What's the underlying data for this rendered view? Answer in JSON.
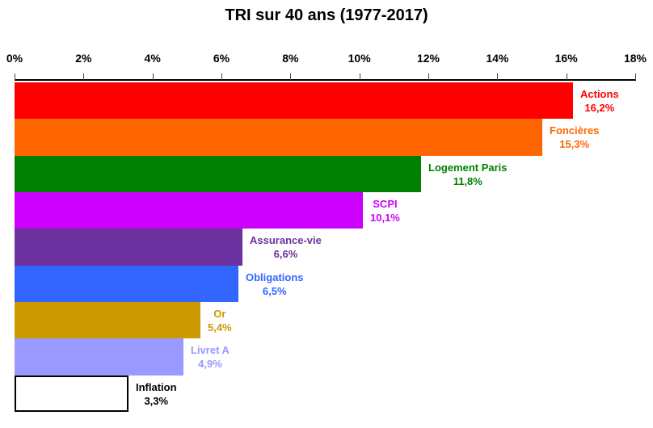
{
  "chart_data": {
    "type": "bar",
    "orientation": "horizontal",
    "title": "TRI sur 40 ans (1977-2017)",
    "categories": [
      "Actions",
      "Foncières",
      "Logement Paris",
      "SCPI",
      "Assurance-vie",
      "Obligations",
      "Or",
      "Livret A",
      "Inflation"
    ],
    "values": [
      16.2,
      15.3,
      11.8,
      10.1,
      6.6,
      6.5,
      5.4,
      4.9,
      3.3
    ],
    "value_labels": [
      "16,2%",
      "15,3%",
      "11,8%",
      "10,1%",
      "6,6%",
      "6,5%",
      "5,4%",
      "4,9%",
      "3,3%"
    ],
    "bar_colors": [
      "#FF0000",
      "#FF6600",
      "#008000",
      "#CC00FF",
      "#6B32A0",
      "#3366FF",
      "#CC9900",
      "#9999FF",
      "#FFFFFF"
    ],
    "label_colors": [
      "#FF0000",
      "#FF6600",
      "#008000",
      "#CC00FF",
      "#6B32A0",
      "#3366FF",
      "#CC9900",
      "#9999FF",
      "#000000"
    ],
    "outlined_bars": [
      "Inflation"
    ],
    "xlabel": "",
    "ylabel": "",
    "xlim": [
      0,
      18
    ],
    "x_ticks": [
      0,
      2,
      4,
      6,
      8,
      10,
      12,
      14,
      16,
      18
    ],
    "x_tick_labels": [
      "0%",
      "2%",
      "4%",
      "6%",
      "8%",
      "10%",
      "12%",
      "14%",
      "16%",
      "18%"
    ],
    "axis_position": "top",
    "grid": "off",
    "legend": "none",
    "data_labels": "outside-end"
  }
}
